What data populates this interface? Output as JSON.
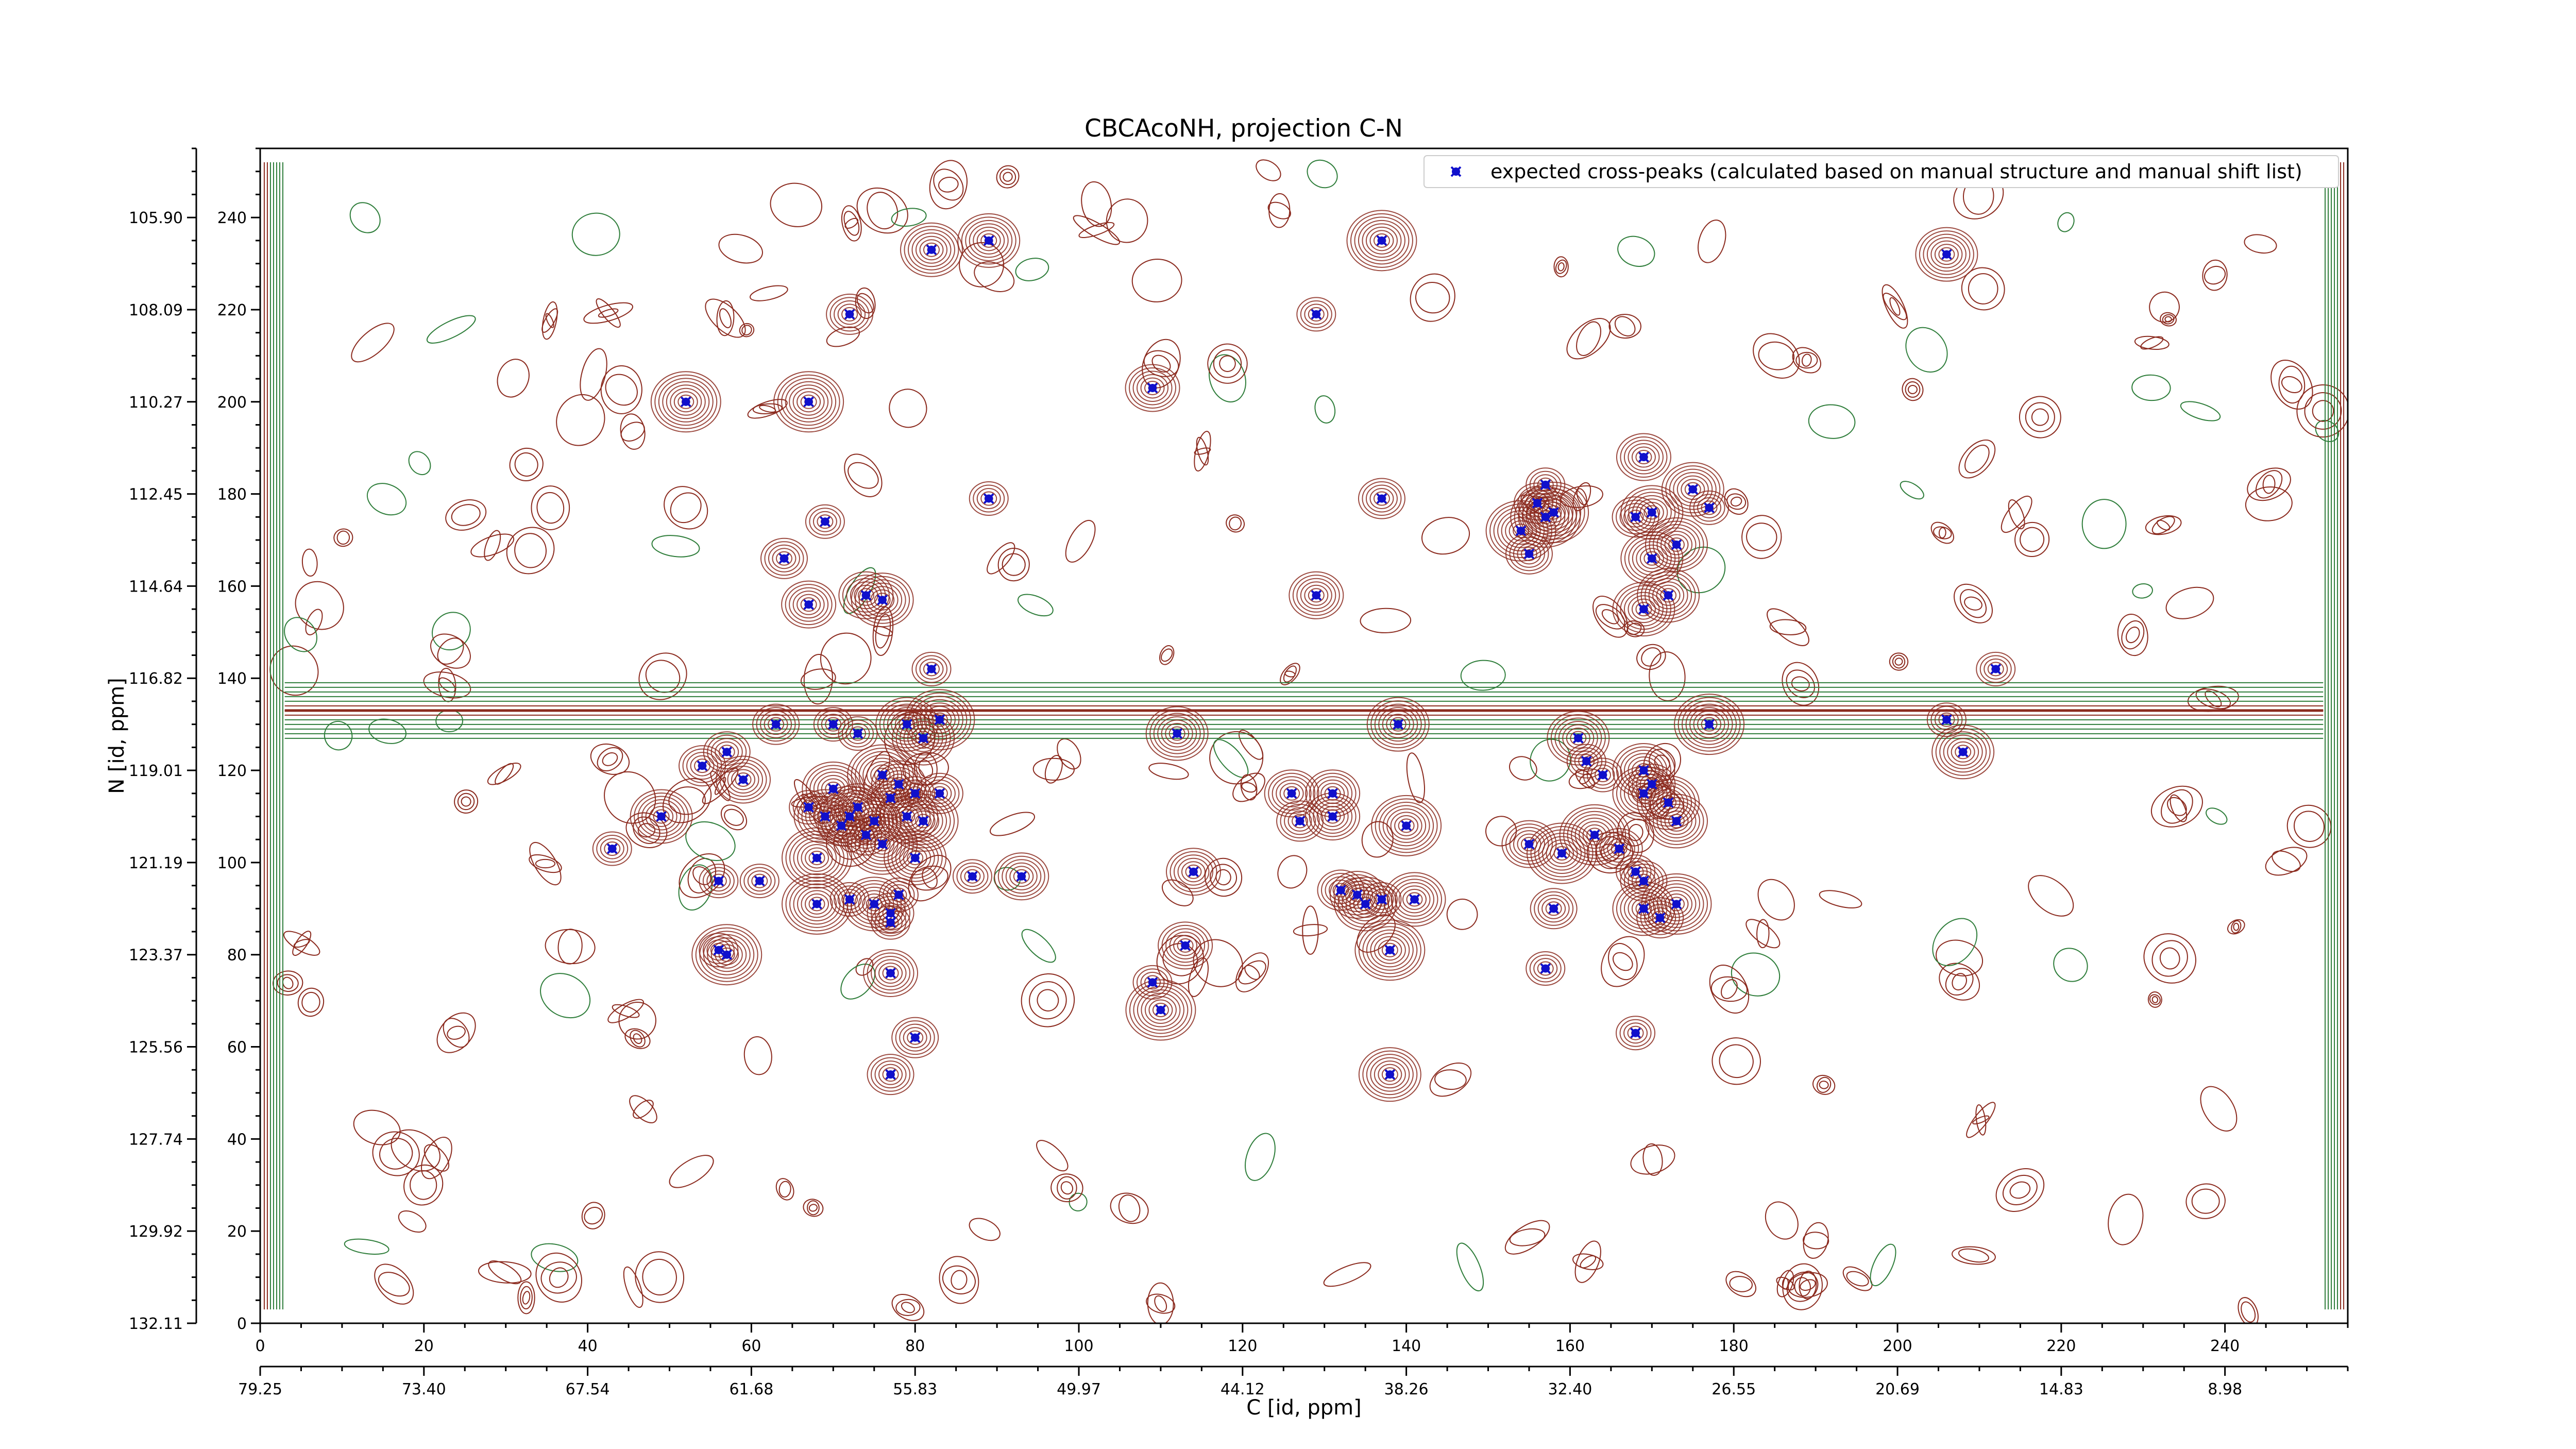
{
  "chart_data": {
    "type": "scatter",
    "title": "CBCAcoNH, projection C-N",
    "xlabel": "C [id, ppm]",
    "ylabel": "N [id, ppm]",
    "xlim": [
      0,
      255
    ],
    "ylim": [
      0,
      255
    ],
    "x_ticks_id": [
      "0",
      "20",
      "40",
      "60",
      "80",
      "100",
      "120",
      "140",
      "160",
      "180",
      "200",
      "220",
      "240"
    ],
    "x_ticks_ppm": [
      "79.25",
      "73.40",
      "67.54",
      "61.68",
      "55.83",
      "49.97",
      "44.12",
      "38.26",
      "32.40",
      "26.55",
      "20.69",
      "14.83",
      "8.98"
    ],
    "y_ticks_id": [
      "0",
      "20",
      "40",
      "60",
      "80",
      "100",
      "120",
      "140",
      "160",
      "180",
      "200",
      "220",
      "240"
    ],
    "y_ticks_ppm": [
      "132.11",
      "129.92",
      "127.74",
      "125.56",
      "123.37",
      "121.19",
      "119.01",
      "116.82",
      "114.64",
      "112.45",
      "110.27",
      "108.09",
      "105.90"
    ],
    "legend": {
      "location": "top-right"
    },
    "colors": {
      "positive_contour": "#8b2a1e",
      "negative_contour": "#2e7d3a",
      "marker": "#1010cc"
    },
    "series": [
      {
        "name": "expected cross-peaks (calculated based on manual structure and manual shift list)",
        "points": [
          [
            82,
            233
          ],
          [
            89,
            235
          ],
          [
            137,
            235
          ],
          [
            206,
            232
          ],
          [
            72,
            219
          ],
          [
            129,
            219
          ],
          [
            52,
            200
          ],
          [
            67,
            200
          ],
          [
            109,
            203
          ],
          [
            89,
            179
          ],
          [
            69,
            174
          ],
          [
            137,
            179
          ],
          [
            64,
            166
          ],
          [
            67,
            156
          ],
          [
            74,
            158
          ],
          [
            76,
            157
          ],
          [
            129,
            158
          ],
          [
            154,
            172
          ],
          [
            156,
            178
          ],
          [
            157,
            182
          ],
          [
            157,
            175
          ],
          [
            158,
            176
          ],
          [
            155,
            167
          ],
          [
            175,
            181
          ],
          [
            177,
            177
          ],
          [
            169,
            188
          ],
          [
            168,
            175
          ],
          [
            170,
            176
          ],
          [
            170,
            166
          ],
          [
            173,
            169
          ],
          [
            169,
            155
          ],
          [
            172,
            158
          ],
          [
            82,
            142
          ],
          [
            212,
            142
          ],
          [
            63,
            130
          ],
          [
            70,
            130
          ],
          [
            73,
            128
          ],
          [
            79,
            130
          ],
          [
            83,
            131
          ],
          [
            81,
            127
          ],
          [
            112,
            128
          ],
          [
            139,
            130
          ],
          [
            161,
            127
          ],
          [
            177,
            130
          ],
          [
            206,
            131
          ],
          [
            208,
            124
          ],
          [
            54,
            121
          ],
          [
            57,
            124
          ],
          [
            59,
            118
          ],
          [
            76,
            119
          ],
          [
            78,
            117
          ],
          [
            80,
            115
          ],
          [
            83,
            115
          ],
          [
            162,
            122
          ],
          [
            164,
            119
          ],
          [
            169,
            120
          ],
          [
            169,
            115
          ],
          [
            170,
            117
          ],
          [
            172,
            113
          ],
          [
            173,
            109
          ],
          [
            49,
            110
          ],
          [
            67,
            112
          ],
          [
            69,
            110
          ],
          [
            70,
            116
          ],
          [
            71,
            108
          ],
          [
            72,
            110
          ],
          [
            73,
            112
          ],
          [
            74,
            106
          ],
          [
            75,
            109
          ],
          [
            77,
            114
          ],
          [
            79,
            110
          ],
          [
            81,
            109
          ],
          [
            126,
            115
          ],
          [
            131,
            115
          ],
          [
            127,
            109
          ],
          [
            131,
            110
          ],
          [
            140,
            108
          ],
          [
            43,
            103
          ],
          [
            56,
            96
          ],
          [
            61,
            96
          ],
          [
            68,
            101
          ],
          [
            76,
            104
          ],
          [
            80,
            101
          ],
          [
            87,
            97
          ],
          [
            93,
            97
          ],
          [
            114,
            98
          ],
          [
            132,
            94
          ],
          [
            141,
            92
          ],
          [
            155,
            104
          ],
          [
            159,
            102
          ],
          [
            163,
            106
          ],
          [
            166,
            103
          ],
          [
            168,
            98
          ],
          [
            169,
            96
          ],
          [
            68,
            91
          ],
          [
            72,
            92
          ],
          [
            75,
            91
          ],
          [
            77,
            89
          ],
          [
            77,
            87
          ],
          [
            78,
            93
          ],
          [
            134,
            93
          ],
          [
            135,
            91
          ],
          [
            137,
            92
          ],
          [
            158,
            90
          ],
          [
            169,
            90
          ],
          [
            171,
            88
          ],
          [
            173,
            91
          ],
          [
            56,
            81
          ],
          [
            57,
            80
          ],
          [
            77,
            76
          ],
          [
            113,
            82
          ],
          [
            138,
            81
          ],
          [
            157,
            77
          ],
          [
            109,
            74
          ],
          [
            110,
            68
          ],
          [
            80,
            62
          ],
          [
            77,
            54
          ],
          [
            138,
            54
          ],
          [
            168,
            63
          ]
        ]
      }
    ]
  }
}
